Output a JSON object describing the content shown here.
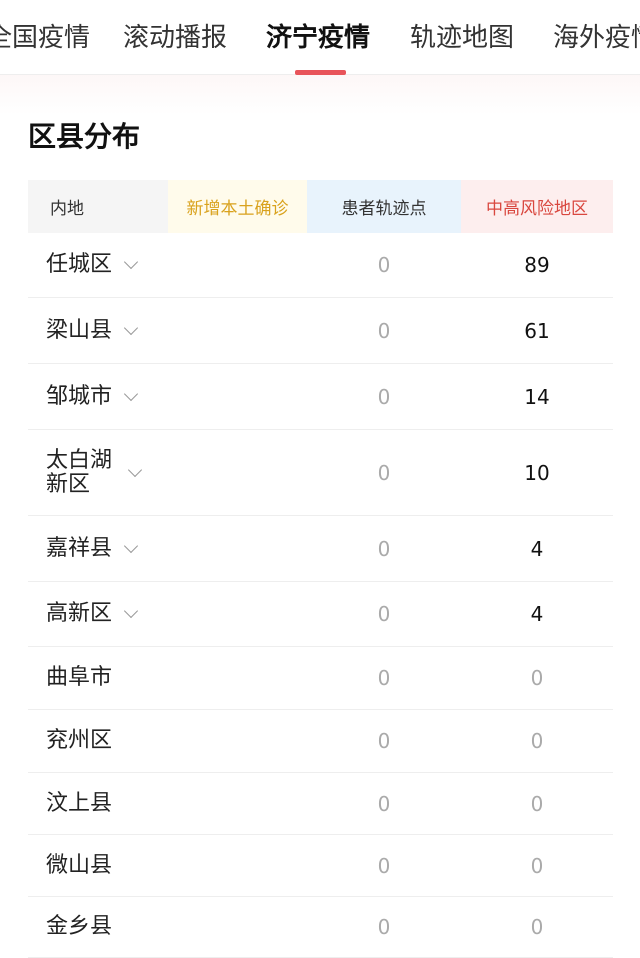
{
  "tabs": [
    {
      "label": "全国疫情",
      "active": false
    },
    {
      "label": "滚动播报",
      "active": false
    },
    {
      "label": "济宁疫情",
      "active": true
    },
    {
      "label": "轨迹地图",
      "active": false
    },
    {
      "label": "海外疫情",
      "active": false
    }
  ],
  "section_title": "区县分布",
  "table": {
    "headers": [
      "内地",
      "新增本土确诊",
      "患者轨迹点",
      "中高风险地区"
    ],
    "header_colors": {
      "new": "#d9a21d",
      "risk": "#d9473f",
      "accent": "#e8545a"
    },
    "rows": [
      {
        "name": "任城区",
        "expandable": true,
        "trail": "0",
        "risk": "89"
      },
      {
        "name": "梁山县",
        "expandable": true,
        "trail": "0",
        "risk": "61"
      },
      {
        "name": "邹城市",
        "expandable": true,
        "trail": "0",
        "risk": "14"
      },
      {
        "name": "太白湖新区",
        "expandable": true,
        "trail": "0",
        "risk": "10"
      },
      {
        "name": "嘉祥县",
        "expandable": true,
        "trail": "0",
        "risk": "4"
      },
      {
        "name": "高新区",
        "expandable": true,
        "trail": "0",
        "risk": "4"
      },
      {
        "name": "曲阜市",
        "expandable": false,
        "trail": "0",
        "risk": "0"
      },
      {
        "name": "兖州区",
        "expandable": false,
        "trail": "0",
        "risk": "0"
      },
      {
        "name": "汶上县",
        "expandable": false,
        "trail": "0",
        "risk": "0"
      },
      {
        "name": "微山县",
        "expandable": false,
        "trail": "0",
        "risk": "0"
      },
      {
        "name": "金乡县",
        "expandable": false,
        "trail": "0",
        "risk": "0"
      }
    ]
  }
}
